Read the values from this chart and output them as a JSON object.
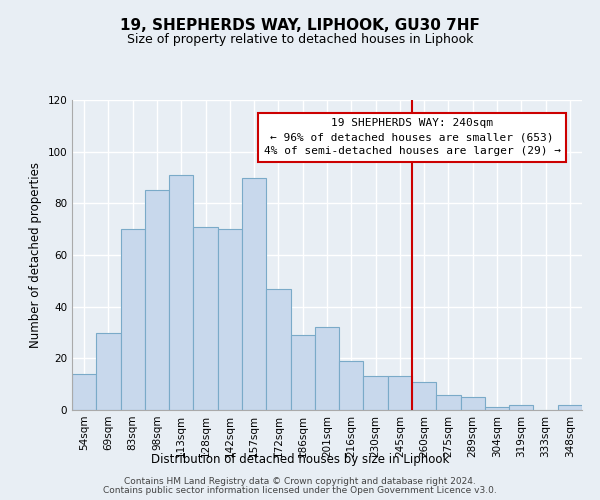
{
  "title": "19, SHEPHERDS WAY, LIPHOOK, GU30 7HF",
  "subtitle": "Size of property relative to detached houses in Liphook",
  "xlabel": "Distribution of detached houses by size in Liphook",
  "ylabel": "Number of detached properties",
  "bar_labels": [
    "54sqm",
    "69sqm",
    "83sqm",
    "98sqm",
    "113sqm",
    "128sqm",
    "142sqm",
    "157sqm",
    "172sqm",
    "186sqm",
    "201sqm",
    "216sqm",
    "230sqm",
    "245sqm",
    "260sqm",
    "275sqm",
    "289sqm",
    "304sqm",
    "319sqm",
    "333sqm",
    "348sqm"
  ],
  "bar_values": [
    14,
    30,
    70,
    85,
    91,
    71,
    70,
    90,
    47,
    29,
    32,
    19,
    13,
    13,
    11,
    6,
    5,
    1,
    2,
    0,
    2
  ],
  "bar_color": "#c8d8ec",
  "bar_edge_color": "#7aaac8",
  "vline_x": 13.5,
  "vline_color": "#cc0000",
  "ylim": [
    0,
    120
  ],
  "yticks": [
    0,
    20,
    40,
    60,
    80,
    100,
    120
  ],
  "annotation_title": "19 SHEPHERDS WAY: 240sqm",
  "annotation_line1": "← 96% of detached houses are smaller (653)",
  "annotation_line2": "4% of semi-detached houses are larger (29) →",
  "annotation_box_color": "#ffffff",
  "annotation_box_edge": "#cc0000",
  "footer1": "Contains HM Land Registry data © Crown copyright and database right 2024.",
  "footer2": "Contains public sector information licensed under the Open Government Licence v3.0.",
  "background_color": "#e8eef4",
  "grid_color": "#ffffff",
  "title_fontsize": 11,
  "subtitle_fontsize": 9,
  "axis_label_fontsize": 8.5,
  "tick_fontsize": 7.5,
  "annotation_fontsize": 8,
  "footer_fontsize": 6.5
}
